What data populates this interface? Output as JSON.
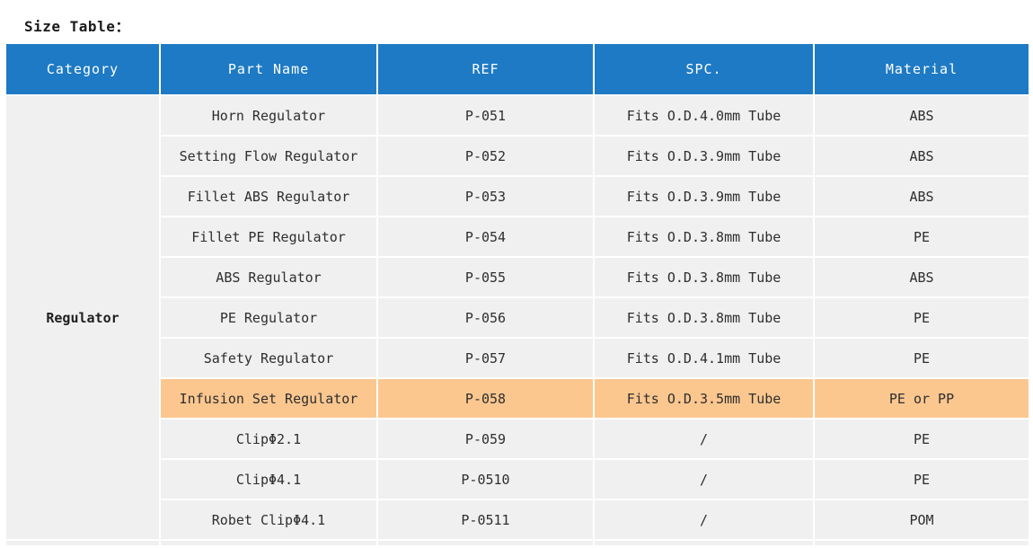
{
  "page": {
    "title": "Size Table："
  },
  "colors": {
    "header_bg": "#1E7AC4",
    "header_text": "#FFFFFF",
    "row_bg": "#F0F0F0",
    "highlight_bg": "#FBC78F",
    "body_text": "#2E2E2E",
    "border": "#FFFFFF"
  },
  "table": {
    "headers": [
      "Category",
      "Part Name",
      "REF",
      "SPC.",
      "Material"
    ],
    "category": "Regulator",
    "rows": [
      {
        "part_name": "Horn Regulator",
        "ref": "P-051",
        "spc": "Fits O.D.4.0mm Tube",
        "material": "ABS",
        "highlighted": false
      },
      {
        "part_name": "Setting Flow Regulator",
        "ref": "P-052",
        "spc": "Fits O.D.3.9mm Tube",
        "material": "ABS",
        "highlighted": false
      },
      {
        "part_name": "Fillet ABS Regulator",
        "ref": "P-053",
        "spc": "Fits O.D.3.9mm Tube",
        "material": "ABS",
        "highlighted": false
      },
      {
        "part_name": "Fillet PE Regulator",
        "ref": "P-054",
        "spc": "Fits O.D.3.8mm Tube",
        "material": "PE",
        "highlighted": false
      },
      {
        "part_name": "ABS Regulator",
        "ref": "P-055",
        "spc": "Fits O.D.3.8mm Tube",
        "material": "ABS",
        "highlighted": false
      },
      {
        "part_name": "PE Regulator",
        "ref": "P-056",
        "spc": "Fits O.D.3.8mm Tube",
        "material": "PE",
        "highlighted": false
      },
      {
        "part_name": "Safety Regulator",
        "ref": "P-057",
        "spc": "Fits O.D.4.1mm Tube",
        "material": "PE",
        "highlighted": false
      },
      {
        "part_name": "Infusion Set Regulator",
        "ref": "P-058",
        "spc": "Fits O.D.3.5mm Tube",
        "material": "PE or PP",
        "highlighted": true
      },
      {
        "part_name": "ClipΦ2.1",
        "ref": "P-059",
        "spc": "/",
        "material": "PE",
        "highlighted": false
      },
      {
        "part_name": "ClipΦ4.1",
        "ref": "P-0510",
        "spc": "/",
        "material": "PE",
        "highlighted": false
      },
      {
        "part_name": "Robet ClipΦ4.1",
        "ref": "P-0511",
        "spc": "/",
        "material": "POM",
        "highlighted": false
      }
    ]
  }
}
